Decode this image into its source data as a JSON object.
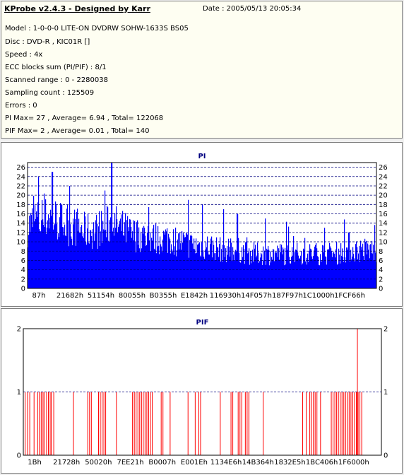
{
  "header": {
    "title": "KProbe v2.4.3 - Designed by Karr",
    "date": "Date : 2005/05/13 20:05:34",
    "lines": [
      "Model : 1-0-0-0 LITE-ON DVDRW SOHW-1633S BS05",
      "Disc : DVD-R , KIC01R []",
      "Speed : 4x",
      "ECC blocks sum (PI/PIF) : 8/1",
      "Scanned range : 0 - 2280038",
      "Sampling count : 125509",
      "Errors : 0",
      "PI Max= 27 , Average= 6.94 , Total= 122068",
      "PIF Max= 2 , Average= 0.01 , Total= 140"
    ]
  },
  "chart_data": [
    {
      "type": "bar",
      "title": "PI",
      "color": "#0000ff",
      "ylim": [
        0,
        27
      ],
      "yticks": [
        0,
        2,
        4,
        6,
        8,
        10,
        12,
        14,
        16,
        18,
        20,
        22,
        24,
        26
      ],
      "xtick_labels": [
        "87h",
        "21682h",
        "51154h",
        "80055h",
        "B0355h",
        "E1842h",
        "116930h",
        "14F057h",
        "187F97h",
        "1C1000h",
        "1FCF66h"
      ],
      "grid": true,
      "values_profile": [
        [
          0.0,
          16
        ],
        [
          0.02,
          18
        ],
        [
          0.04,
          17
        ],
        [
          0.06,
          19
        ],
        [
          0.08,
          18
        ],
        [
          0.1,
          17
        ],
        [
          0.12,
          16
        ],
        [
          0.14,
          16
        ],
        [
          0.16,
          15
        ],
        [
          0.18,
          15
        ],
        [
          0.2,
          15
        ],
        [
          0.22,
          16
        ],
        [
          0.24,
          17
        ],
        [
          0.26,
          16
        ],
        [
          0.28,
          15
        ],
        [
          0.3,
          14
        ],
        [
          0.32,
          14
        ],
        [
          0.36,
          13
        ],
        [
          0.4,
          13
        ],
        [
          0.44,
          12
        ],
        [
          0.48,
          11
        ],
        [
          0.52,
          11
        ],
        [
          0.56,
          10
        ],
        [
          0.6,
          10
        ],
        [
          0.64,
          9
        ],
        [
          0.68,
          9
        ],
        [
          0.72,
          9
        ],
        [
          0.76,
          9
        ],
        [
          0.8,
          9
        ],
        [
          0.84,
          9
        ],
        [
          0.88,
          9
        ],
        [
          0.92,
          10
        ],
        [
          0.96,
          10
        ],
        [
          1.0,
          10
        ]
      ],
      "peaks": [
        [
          0.03,
          24
        ],
        [
          0.07,
          25
        ],
        [
          0.12,
          22
        ],
        [
          0.24,
          27
        ],
        [
          0.22,
          21
        ],
        [
          0.46,
          19
        ],
        [
          0.5,
          18
        ],
        [
          0.56,
          17
        ],
        [
          0.6,
          16
        ],
        [
          0.68,
          15
        ],
        [
          0.85,
          13
        ],
        [
          0.92,
          12
        ]
      ]
    },
    {
      "type": "bar",
      "title": "PIF",
      "color": "#ff0000",
      "ylim": [
        0,
        2
      ],
      "yticks": [
        0,
        1,
        2
      ],
      "xtick_labels": [
        "1Bh",
        "21728h",
        "50020h",
        "7EE21h",
        "B0007h",
        "E001Eh",
        "1134E6h",
        "14B364h",
        "1832E5h",
        "1BC406h",
        "1F6000h"
      ],
      "grid": true,
      "spikes_value_1": [
        0.005,
        0.012,
        0.018,
        0.03,
        0.04,
        0.045,
        0.05,
        0.055,
        0.058,
        0.065,
        0.07,
        0.075,
        0.078,
        0.085,
        0.14,
        0.18,
        0.185,
        0.19,
        0.21,
        0.215,
        0.22,
        0.225,
        0.23,
        0.26,
        0.305,
        0.31,
        0.315,
        0.32,
        0.325,
        0.33,
        0.335,
        0.34,
        0.345,
        0.35,
        0.355,
        0.36,
        0.385,
        0.39,
        0.41,
        0.46,
        0.48,
        0.49,
        0.495,
        0.55,
        0.58,
        0.585,
        0.6,
        0.605,
        0.61,
        0.62,
        0.625,
        0.63,
        0.63,
        0.67,
        0.78,
        0.79,
        0.8,
        0.805,
        0.81,
        0.815,
        0.82,
        0.83,
        0.86,
        0.865,
        0.87,
        0.875,
        0.88,
        0.885,
        0.89,
        0.895,
        0.9,
        0.905,
        0.91,
        0.915,
        0.92,
        0.925,
        0.93,
        0.935,
        0.94,
        0.945
      ],
      "spikes_value_2": [
        0.933
      ]
    }
  ]
}
